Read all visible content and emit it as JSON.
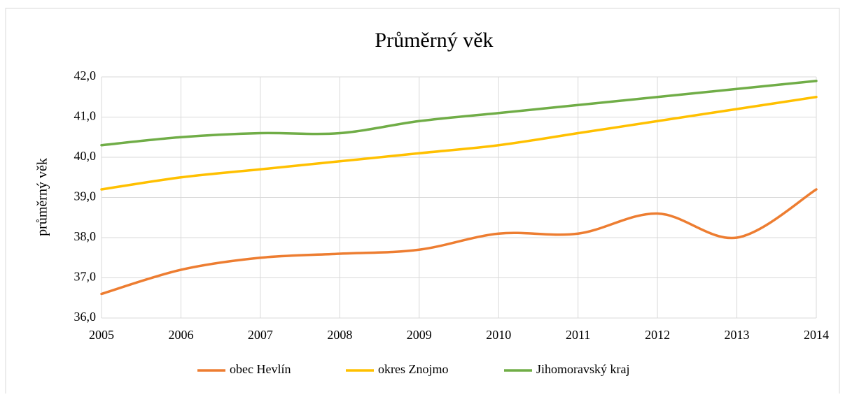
{
  "chart_data": {
    "type": "line",
    "title": "Průměrný  věk",
    "y_label": "průměrný věk",
    "x": [
      2005,
      2006,
      2007,
      2008,
      2009,
      2010,
      2011,
      2012,
      2013,
      2014
    ],
    "xlim": [
      2005,
      2014
    ],
    "xticks": [
      2005,
      2006,
      2007,
      2008,
      2009,
      2010,
      2011,
      2012,
      2013,
      2014
    ],
    "ylim": [
      36,
      42
    ],
    "yticks": [
      {
        "value": 36,
        "label": "36,0"
      },
      {
        "value": 37,
        "label": "37,0"
      },
      {
        "value": 38,
        "label": "38,0"
      },
      {
        "value": 39,
        "label": "39,0"
      },
      {
        "value": 40,
        "label": "40,0"
      },
      {
        "value": 41,
        "label": "41,0"
      },
      {
        "value": 42,
        "label": "42,0"
      }
    ],
    "grid": true,
    "smooth": true,
    "legend": "bottom",
    "series": [
      {
        "name": "obec Hevlín",
        "color": "#ed7d31",
        "values": [
          36.6,
          37.2,
          37.5,
          37.6,
          37.7,
          38.1,
          38.1,
          38.6,
          38.0,
          39.2
        ]
      },
      {
        "name": "okres Znojmo",
        "color": "#ffc000",
        "values": [
          39.2,
          39.5,
          39.7,
          39.9,
          40.1,
          40.3,
          40.6,
          40.9,
          41.2,
          41.5
        ]
      },
      {
        "name": "Jihomoravský kraj",
        "color": "#70ad47",
        "values": [
          40.3,
          40.5,
          40.6,
          40.6,
          40.9,
          41.1,
          41.3,
          41.5,
          41.7,
          41.9
        ]
      }
    ]
  }
}
